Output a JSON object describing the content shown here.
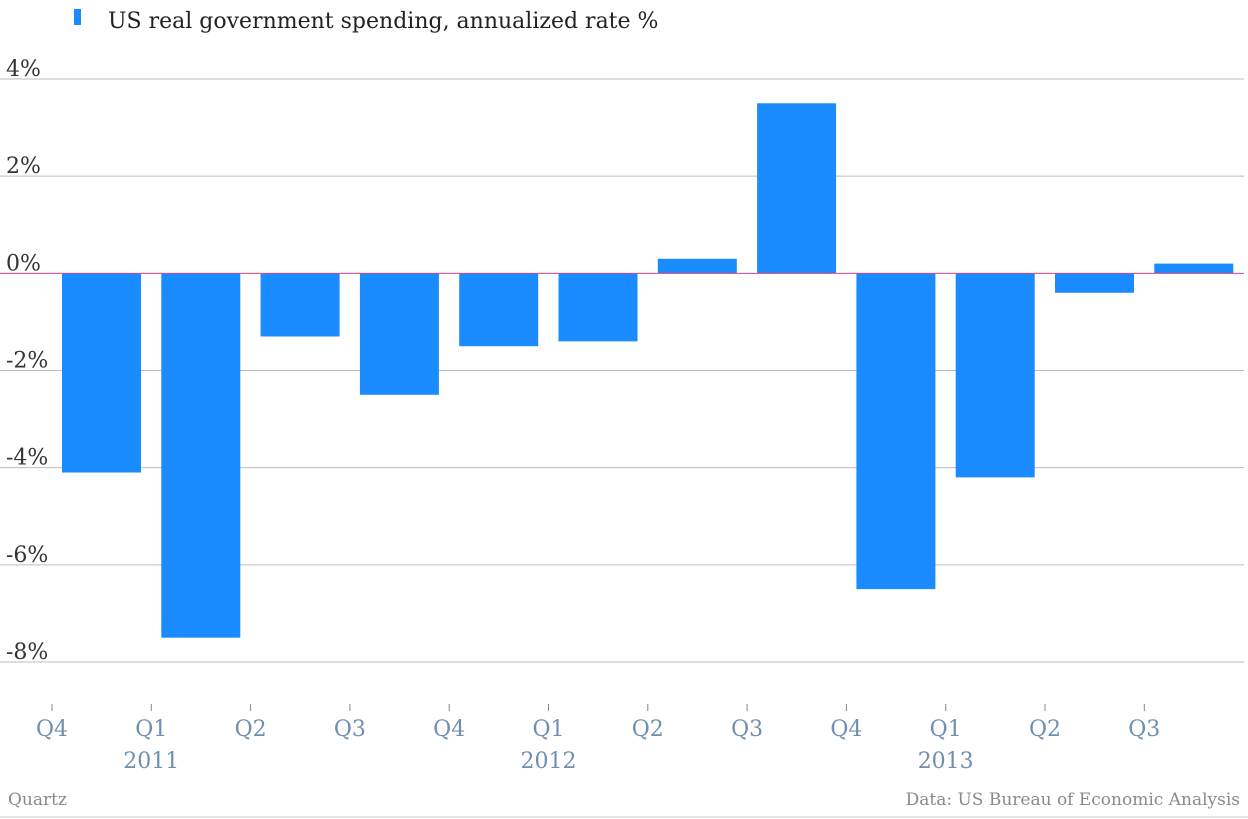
{
  "legend": {
    "label": "US real government spending, annualized rate %",
    "color": "#1a8cff"
  },
  "footer": {
    "source_left": "Quartz",
    "source_right": "Data: US Bureau of Economic Analysis"
  },
  "chart_data": {
    "type": "bar",
    "categories": [
      "Q4 2010",
      "Q1 2011",
      "Q2 2011",
      "Q3 2011",
      "Q4 2011",
      "Q1 2012",
      "Q2 2012",
      "Q3 2012",
      "Q4 2012",
      "Q1 2013",
      "Q2 2013",
      "Q3 2013"
    ],
    "series": [
      {
        "name": "US real government spending, annualized rate %",
        "values": [
          -4.1,
          -7.5,
          -1.3,
          -2.5,
          -1.5,
          -1.4,
          0.3,
          3.5,
          -6.5,
          -4.2,
          -0.4,
          0.2
        ]
      }
    ],
    "x_tick_labels": [
      "Q4",
      "Q1",
      "Q2",
      "Q3",
      "Q4",
      "Q1",
      "Q2",
      "Q3",
      "Q4",
      "Q1",
      "Q2",
      "Q3"
    ],
    "x_year_labels": [
      {
        "label": "2011",
        "tick_index": 1
      },
      {
        "label": "2012",
        "tick_index": 5
      },
      {
        "label": "2013",
        "tick_index": 9
      }
    ],
    "y_ticks": [
      4,
      2,
      0,
      -2,
      -4,
      -6,
      -8
    ],
    "y_tick_labels": [
      "4%",
      "2%",
      "0%",
      "-2%",
      "-4%",
      "-6%",
      "-8%"
    ],
    "ylim": [
      -8,
      4
    ],
    "grid": true,
    "legend_position": "top-left"
  }
}
